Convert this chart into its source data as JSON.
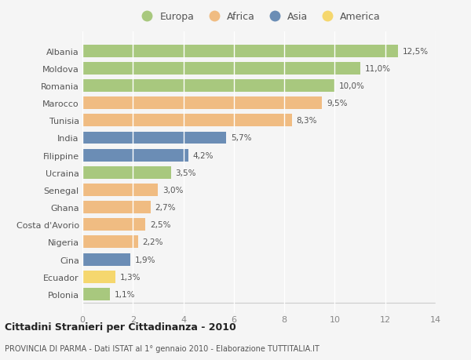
{
  "countries": [
    "Albania",
    "Moldova",
    "Romania",
    "Marocco",
    "Tunisia",
    "India",
    "Filippine",
    "Ucraina",
    "Senegal",
    "Ghana",
    "Costa d'Avorio",
    "Nigeria",
    "Cina",
    "Ecuador",
    "Polonia"
  ],
  "values": [
    12.5,
    11.0,
    10.0,
    9.5,
    8.3,
    5.7,
    4.2,
    3.5,
    3.0,
    2.7,
    2.5,
    2.2,
    1.9,
    1.3,
    1.1
  ],
  "labels": [
    "12,5%",
    "11,0%",
    "10,0%",
    "9,5%",
    "8,3%",
    "5,7%",
    "4,2%",
    "3,5%",
    "3,0%",
    "2,7%",
    "2,5%",
    "2,2%",
    "1,9%",
    "1,3%",
    "1,1%"
  ],
  "continents": [
    "Europa",
    "Europa",
    "Europa",
    "Africa",
    "Africa",
    "Asia",
    "Asia",
    "Europa",
    "Africa",
    "Africa",
    "Africa",
    "Africa",
    "Asia",
    "America",
    "Europa"
  ],
  "colors": {
    "Europa": "#a8c87e",
    "Africa": "#f0bc82",
    "Asia": "#6b8db5",
    "America": "#f5d76e"
  },
  "xlim": [
    0,
    14
  ],
  "xticks": [
    0,
    2,
    4,
    6,
    8,
    10,
    12,
    14
  ],
  "background_color": "#f5f5f5",
  "grid_color": "#ffffff",
  "title": "Cittadini Stranieri per Cittadinanza - 2010",
  "subtitle": "PROVINCIA DI PARMA - Dati ISTAT al 1° gennaio 2010 - Elaborazione TUTTITALIA.IT",
  "legend_order": [
    "Europa",
    "Africa",
    "Asia",
    "America"
  ]
}
